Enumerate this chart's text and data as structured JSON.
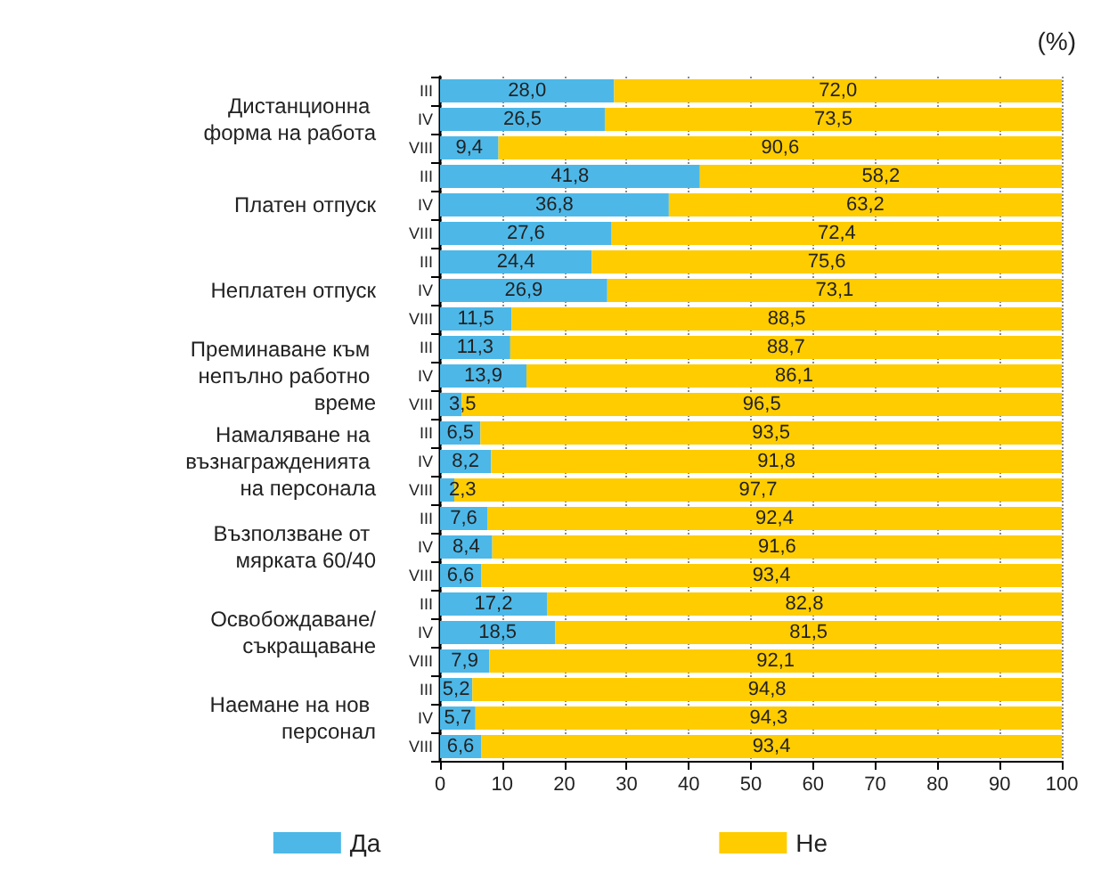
{
  "chart_data": {
    "type": "bar",
    "orientation": "horizontal",
    "stacked": true,
    "xlabel": "(%)",
    "categories": [
      "III",
      "IV",
      "VIII",
      "III",
      "IV",
      "VIII",
      "III",
      "IV",
      "VIII",
      "III",
      "IV",
      "VIII",
      "III",
      "IV",
      "VIII",
      "III",
      "IV",
      "VIII",
      "III",
      "IV",
      "VIII",
      "III",
      "IV",
      "VIII"
    ],
    "annotations": [
      "Дистанционна форма на работа",
      "Платен отпуск",
      "Неплатен отпуск",
      "Преминаване към непълно работно време",
      "Намаляване на възнагражденията на персонала",
      "Възползване от мярката 60/40",
      "Освобождаване/съкращаване",
      "Наемане на нов персонал"
    ],
    "series": [
      {
        "name": "Да",
        "color": "#4db8e8",
        "values": [
          28.0,
          26.5,
          9.4,
          41.8,
          36.8,
          27.6,
          24.4,
          26.9,
          11.5,
          11.3,
          13.9,
          3.5,
          6.5,
          8.2,
          2.3,
          7.6,
          8.4,
          6.6,
          17.2,
          18.5,
          7.9,
          5.2,
          5.7,
          6.6
        ],
        "value_labels": [
          "28,0",
          "26,5",
          "9,4",
          "41,8",
          "36,8",
          "27,6",
          "24,4",
          "26,9",
          "11,5",
          "11,3",
          "13,9",
          "3,5",
          "6,5",
          "8,2",
          "2,3",
          "7,6",
          "8,4",
          "6,6",
          "17,2",
          "18,5",
          "7,9",
          "5,2",
          "5,7",
          "6,6"
        ]
      },
      {
        "name": "Не",
        "color": "#ffcc00",
        "values": [
          72.0,
          73.5,
          90.6,
          58.2,
          63.2,
          72.4,
          75.6,
          73.1,
          88.5,
          88.7,
          86.1,
          96.5,
          93.5,
          91.8,
          97.7,
          92.4,
          91.6,
          93.4,
          82.8,
          81.5,
          92.1,
          94.8,
          94.3,
          93.4
        ],
        "value_labels": [
          "72,0",
          "73,5",
          "90,6",
          "58,2",
          "63,2",
          "72,4",
          "75,6",
          "73,1",
          "88,5",
          "88,7",
          "86,1",
          "96,5",
          "93,5",
          "91,8",
          "97,7",
          "92,4",
          "91,6",
          "93,4",
          "82,8",
          "81,5",
          "92,1",
          "94,8",
          "94,3",
          "93,4"
        ]
      }
    ],
    "xlim": [
      0,
      100
    ],
    "xticks": [
      0,
      10,
      20,
      30,
      40,
      50,
      60,
      70,
      80,
      90,
      100
    ],
    "grid": "x",
    "legend": "bottom"
  }
}
